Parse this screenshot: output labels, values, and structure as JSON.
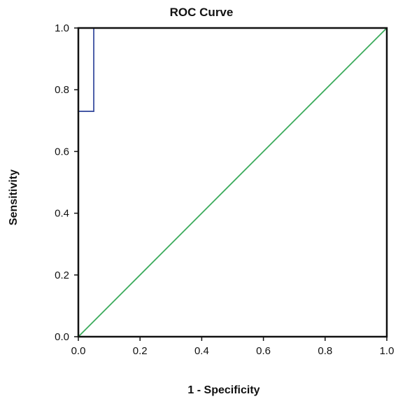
{
  "chart_data": {
    "type": "line",
    "title": "ROC Curve",
    "xlabel": "1 - Specificity",
    "ylabel": "Sensitivity",
    "xlim": [
      0,
      1
    ],
    "ylim": [
      0,
      1
    ],
    "x_ticks": [
      "0.0",
      "0.2",
      "0.4",
      "0.6",
      "0.8",
      "1.0"
    ],
    "y_ticks": [
      "0.0",
      "0.2",
      "0.4",
      "0.6",
      "0.8",
      "1.0"
    ],
    "grid": false,
    "legend": "none",
    "series": [
      {
        "color": "#3b4fa0",
        "points": [
          [
            0,
            0.73
          ],
          [
            0.05,
            0.73
          ],
          [
            0.05,
            1.0
          ]
        ]
      },
      {
        "color": "#3aab5b",
        "points": [
          [
            0,
            0
          ],
          [
            1,
            1
          ]
        ]
      }
    ]
  }
}
